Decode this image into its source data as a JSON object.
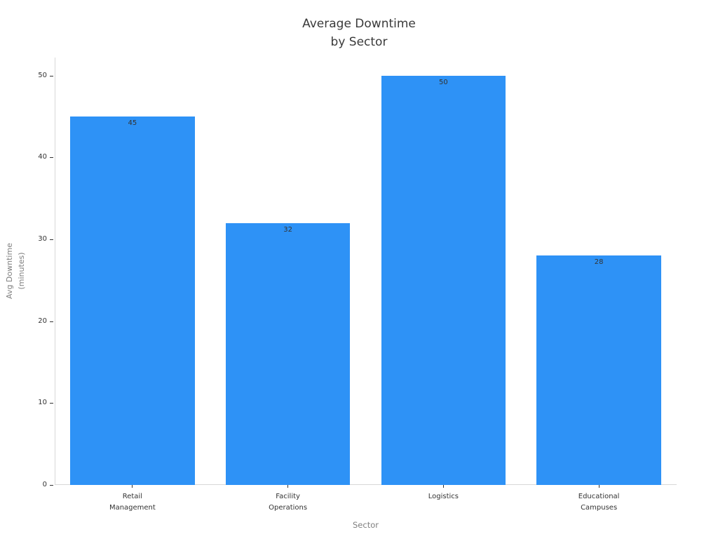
{
  "chart_data": {
    "type": "bar",
    "title": "Average Downtime\nby Sector",
    "categories": [
      "Retail\nManagement",
      "Facility\nOperations",
      "Logistics",
      "Educational\nCampuses"
    ],
    "values": [
      45,
      32,
      50,
      28
    ],
    "bar_labels": [
      "45",
      "32",
      "50",
      "28"
    ],
    "xlabel": "Sector",
    "ylabel": "Avg Downtime\n(minutes)",
    "ylim": [
      0,
      52.2
    ],
    "yticks": [
      0,
      10,
      20,
      30,
      40,
      50
    ],
    "bar_width_fraction": 0.8,
    "grid": false,
    "legend": null,
    "bar_color": "#2e92f6"
  },
  "colors": {
    "bar": "#2e92f6",
    "title_text": "#3a3a3a",
    "tick_text": "#333333",
    "value_label_text": "#333333",
    "axis_label_text": "#7f7f7f",
    "spine": "#d8d8d8",
    "background": "#ffffff"
  }
}
